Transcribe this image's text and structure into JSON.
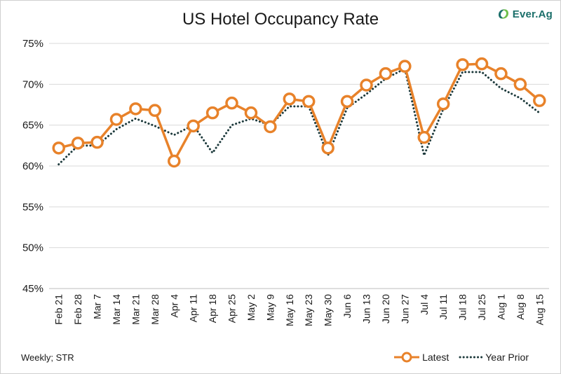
{
  "logo": {
    "text": "Ever.Ag",
    "color": "#1b6f6a",
    "icon": "leaf-swirl-icon"
  },
  "footer": {
    "source": "Weekly; STR"
  },
  "chart_data": {
    "type": "line",
    "title": "US Hotel Occupancy Rate",
    "xlabel": "",
    "ylabel": "",
    "ylim": [
      45,
      75
    ],
    "yticks": [
      45,
      50,
      55,
      60,
      65,
      70,
      75
    ],
    "ytick_labels": [
      "45%",
      "50%",
      "55%",
      "60%",
      "65%",
      "70%",
      "75%"
    ],
    "grid": true,
    "legend_position": "bottom-right",
    "categories": [
      "Feb 21",
      "Feb 28",
      "Mar 7",
      "Mar 14",
      "Mar 21",
      "Mar 28",
      "Apr 4",
      "Apr 11",
      "Apr 18",
      "Apr 25",
      "May 2",
      "May 9",
      "May 16",
      "May 23",
      "May 30",
      "Jun 6",
      "Jun 13",
      "Jun 20",
      "Jun 27",
      "Jul 4",
      "Jul 11",
      "Jul 18",
      "Jul 25",
      "Aug 1",
      "Aug 8",
      "Aug 15"
    ],
    "series": [
      {
        "name": "Latest",
        "color": "#e8822a",
        "style": "solid-with-circle-markers",
        "values": [
          62.2,
          62.8,
          62.9,
          65.7,
          67.0,
          66.8,
          60.6,
          64.9,
          66.5,
          67.7,
          66.5,
          64.8,
          68.2,
          67.9,
          62.2,
          67.9,
          69.9,
          71.3,
          72.2,
          63.5,
          67.6,
          72.4,
          72.5,
          71.3,
          70.0,
          68.0
        ]
      },
      {
        "name": "Year Prior",
        "color": "#1d3a3c",
        "style": "dotted",
        "values": [
          60.2,
          62.5,
          62.5,
          64.5,
          65.8,
          64.9,
          63.8,
          65.0,
          61.6,
          65.0,
          65.8,
          65.0,
          67.3,
          67.3,
          61.3,
          67.1,
          68.8,
          70.7,
          71.9,
          61.3,
          67.0,
          71.5,
          71.5,
          69.5,
          68.3,
          66.5
        ]
      }
    ]
  }
}
